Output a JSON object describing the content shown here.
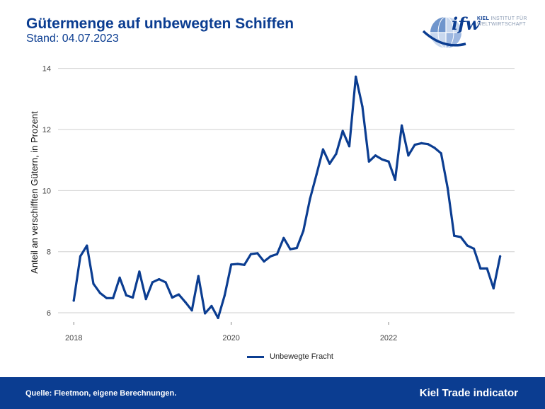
{
  "header": {
    "title": "Gütermenge auf unbewegten Schiffen",
    "subtitle": "Stand: 04.07.2023"
  },
  "logo": {
    "mark": "ifw",
    "line1_bold": "KIEL",
    "line1_rest": "INSTITUT FÜR",
    "line2": "WELTWIRTSCHAFT"
  },
  "footer": {
    "source": "Quelle: Fleetmon, eigene Berechnungen.",
    "brand": "Kiel Trade indicator"
  },
  "colors": {
    "primary": "#0b3d91",
    "grid": "#cfcfcf"
  },
  "chart_data": {
    "type": "line",
    "title": "Gütermenge auf unbewegten Schiffen",
    "xlabel": "",
    "ylabel": "Anteil an verschifften Gütern, in Prozent",
    "ylim": [
      5.7,
      14.2
    ],
    "yticks": [
      6,
      8,
      10,
      12,
      14
    ],
    "xlim": [
      2017.8,
      2023.6
    ],
    "xticks": [
      {
        "value": 2018,
        "label": "2018"
      },
      {
        "value": 2020,
        "label": "2020"
      },
      {
        "value": 2022,
        "label": "2022"
      }
    ],
    "grid": true,
    "legend_position": "bottom",
    "series": [
      {
        "name": "Unbewegte Fracht",
        "x": [
          2018.0,
          2018.083,
          2018.167,
          2018.25,
          2018.333,
          2018.417,
          2018.5,
          2018.583,
          2018.667,
          2018.75,
          2018.833,
          2018.917,
          2019.0,
          2019.083,
          2019.167,
          2019.25,
          2019.333,
          2019.417,
          2019.5,
          2019.583,
          2019.667,
          2019.75,
          2019.833,
          2019.917,
          2020.0,
          2020.083,
          2020.167,
          2020.25,
          2020.333,
          2020.417,
          2020.5,
          2020.583,
          2020.667,
          2020.75,
          2020.833,
          2020.917,
          2021.0,
          2021.083,
          2021.167,
          2021.25,
          2021.333,
          2021.417,
          2021.5,
          2021.583,
          2021.667,
          2021.75,
          2021.833,
          2021.917,
          2022.0,
          2022.083,
          2022.167,
          2022.25,
          2022.333,
          2022.417,
          2022.5,
          2022.583,
          2022.667,
          2022.75,
          2022.833,
          2022.917,
          2023.0,
          2023.083,
          2023.167,
          2023.25,
          2023.333,
          2023.417
        ],
        "values": [
          6.4,
          7.85,
          8.2,
          6.95,
          6.65,
          6.48,
          6.48,
          7.15,
          6.57,
          6.5,
          7.35,
          6.45,
          7.0,
          7.1,
          7.0,
          6.5,
          6.6,
          6.35,
          6.08,
          7.2,
          5.98,
          6.22,
          5.83,
          6.57,
          7.58,
          7.6,
          7.57,
          7.92,
          7.95,
          7.68,
          7.85,
          7.92,
          8.45,
          8.08,
          8.12,
          8.68,
          9.72,
          10.52,
          11.35,
          10.88,
          11.2,
          11.95,
          11.45,
          13.73,
          12.75,
          10.95,
          11.15,
          11.02,
          10.95,
          10.35,
          12.13,
          11.15,
          11.5,
          11.55,
          11.52,
          11.4,
          11.22,
          10.08,
          8.52,
          8.48,
          8.2,
          8.1,
          7.45,
          7.45,
          6.8,
          7.85
        ]
      }
    ]
  }
}
